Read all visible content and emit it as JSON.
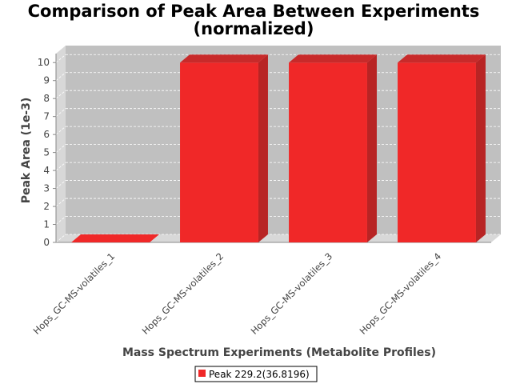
{
  "chart_data": {
    "type": "bar",
    "title_line1": "Comparison of Peak Area Between Experiments",
    "title_line2": "(normalized)",
    "xlabel": "Mass Spectrum Experiments (Metabolite Profiles)",
    "ylabel": "Peak Area (1e-3)",
    "categories": [
      "Hops_GC-MS-volatiles_1",
      "Hops_GC-MS-volatiles_2",
      "Hops_GC-MS-volatiles_3",
      "Hops_GC-MS-volatiles_4"
    ],
    "series": [
      {
        "name": "Peak 229.2(36.8196)",
        "values": [
          0,
          10,
          10,
          10
        ],
        "color": "#f02828"
      }
    ],
    "yticks": [
      0,
      1,
      2,
      3,
      4,
      5,
      6,
      7,
      8,
      9,
      10
    ],
    "ylim": [
      0,
      10.5
    ],
    "grid": true,
    "legend_position": "bottom",
    "plot_background": "#c0c0c0",
    "three_d": true
  }
}
